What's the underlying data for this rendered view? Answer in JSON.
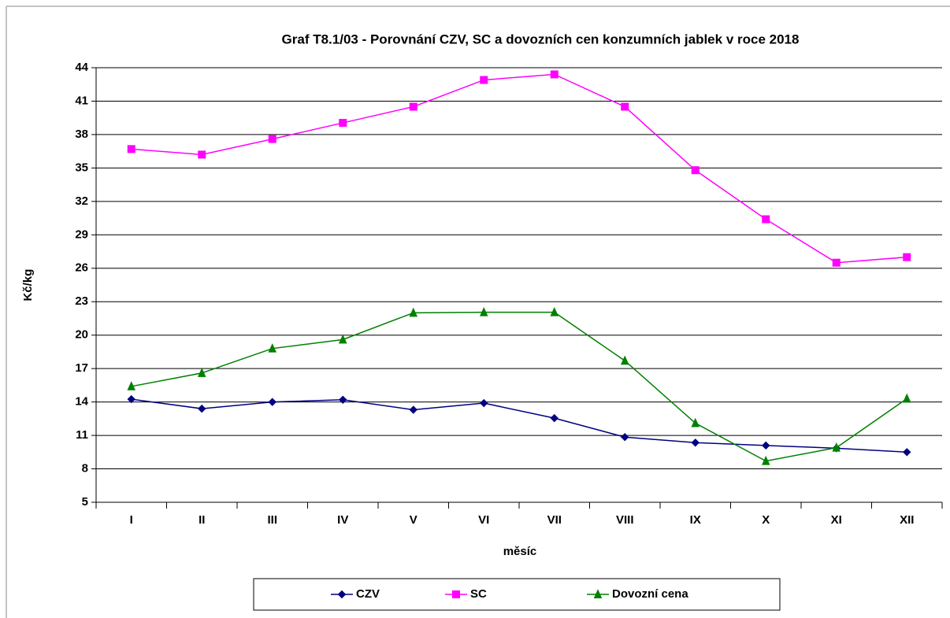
{
  "chart_data": {
    "type": "line",
    "title": "Graf T8.1/03 - Porovnání CZV, SC a dovozních cen konzumních jablek v roce 2018",
    "x_label": "měsíc",
    "y_label": "Kč/kg",
    "categories": [
      "I",
      "II",
      "III",
      "IV",
      "V",
      "VI",
      "VII",
      "VIII",
      "IX",
      "X",
      "XI",
      "XII"
    ],
    "series": [
      {
        "name": "CZV",
        "color": "#000080",
        "marker": "diamond",
        "values": [
          14.25,
          13.4,
          14.0,
          14.2,
          13.3,
          13.9,
          12.55,
          10.85,
          10.35,
          10.1,
          9.85,
          9.5
        ]
      },
      {
        "name": "SC",
        "color": "#ff00ff",
        "marker": "square",
        "values": [
          36.7,
          36.2,
          37.6,
          39.05,
          40.5,
          42.9,
          43.4,
          40.5,
          34.8,
          30.4,
          26.5,
          27.0
        ]
      },
      {
        "name": "Dovozní cena",
        "color": "#008000",
        "marker": "triangle",
        "values": [
          15.4,
          16.6,
          18.8,
          19.6,
          22.0,
          22.05,
          22.05,
          17.7,
          12.1,
          8.7,
          9.9,
          14.3
        ]
      }
    ],
    "ylim": [
      5,
      44
    ],
    "yticks": [
      5,
      8,
      11,
      14,
      17,
      20,
      23,
      26,
      29,
      32,
      35,
      38,
      41,
      44
    ],
    "grid": true,
    "legend": "bottom"
  }
}
